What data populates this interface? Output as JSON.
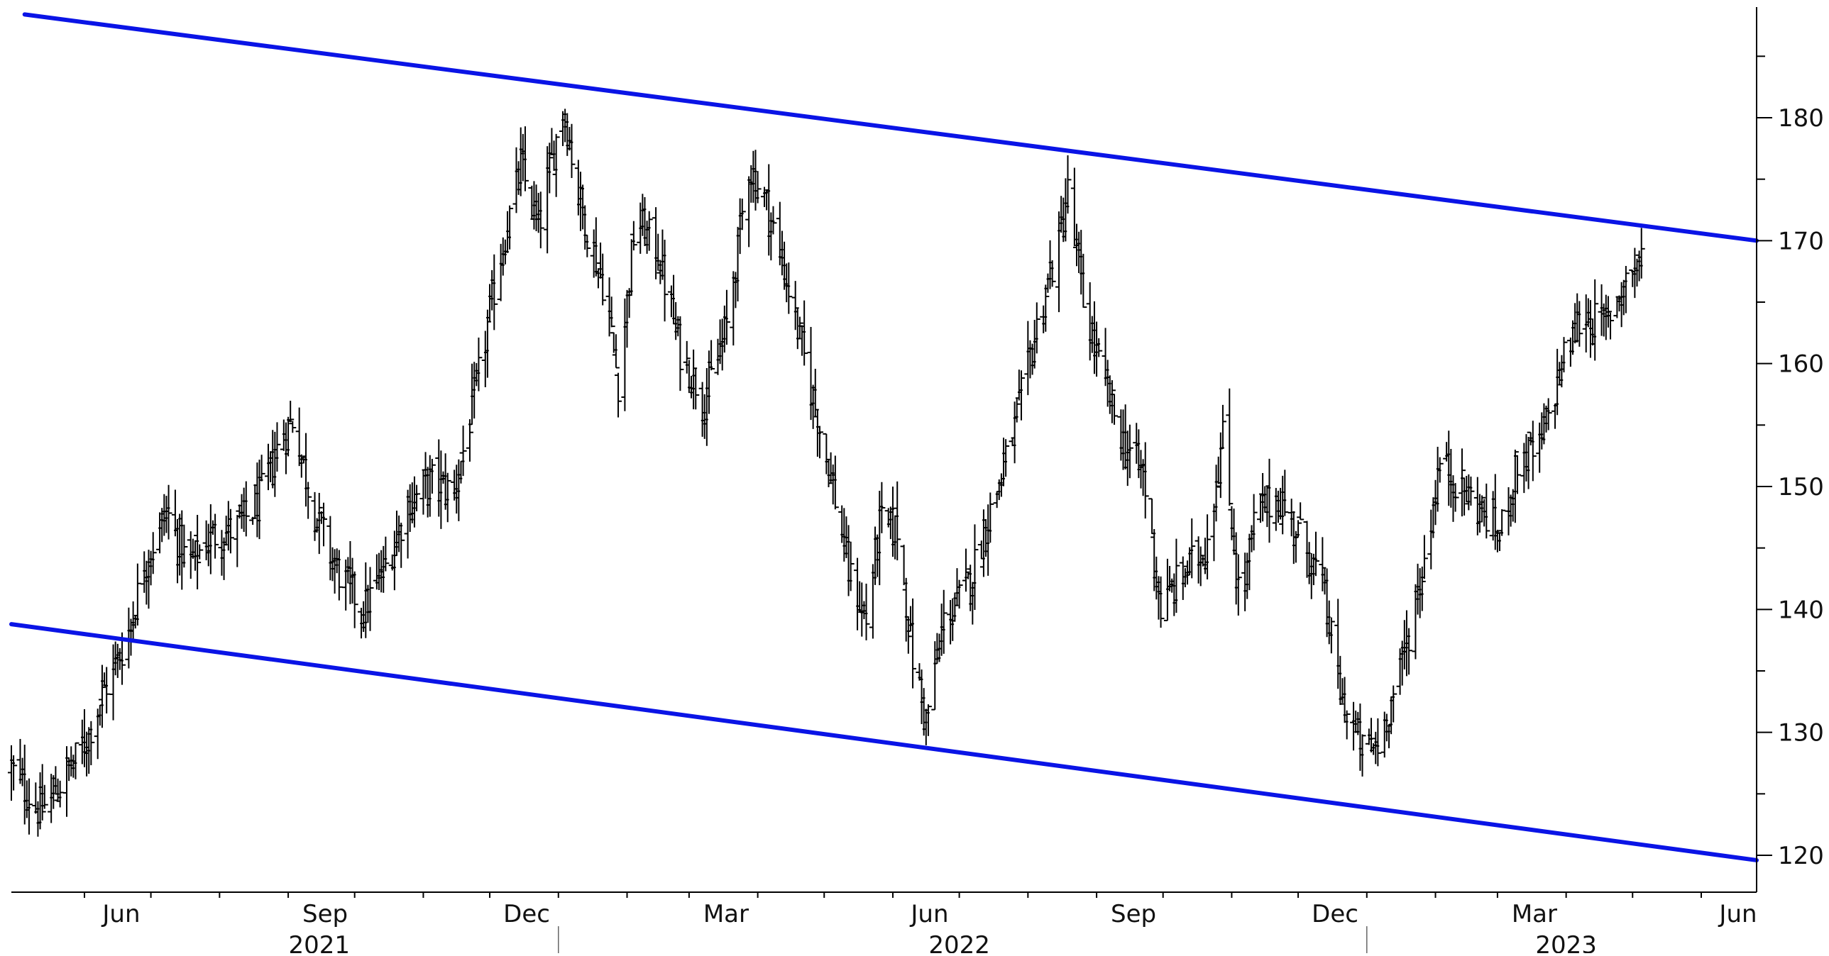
{
  "chart_data": {
    "type": "ohlc",
    "title": "",
    "xlabel": "",
    "ylabel": "",
    "ylim": [
      117,
      189
    ],
    "y_ticks": [
      120,
      130,
      140,
      150,
      160,
      170,
      180
    ],
    "y_axis_position": "right",
    "grid": false,
    "x_range": [
      "2021-04-29",
      "2023-06-26"
    ],
    "month_ticks": [
      {
        "date": "2021-06-01",
        "label": "Jun"
      },
      {
        "date": "2021-07-01",
        "label": ""
      },
      {
        "date": "2021-08-01",
        "label": ""
      },
      {
        "date": "2021-09-01",
        "label": "Sep"
      },
      {
        "date": "2021-10-01",
        "label": ""
      },
      {
        "date": "2021-11-01",
        "label": ""
      },
      {
        "date": "2021-12-01",
        "label": "Dec"
      },
      {
        "date": "2022-01-01",
        "label": ""
      },
      {
        "date": "2022-02-01",
        "label": ""
      },
      {
        "date": "2022-03-01",
        "label": "Mar"
      },
      {
        "date": "2022-04-01",
        "label": ""
      },
      {
        "date": "2022-05-01",
        "label": ""
      },
      {
        "date": "2022-06-01",
        "label": "Jun"
      },
      {
        "date": "2022-07-01",
        "label": ""
      },
      {
        "date": "2022-08-01",
        "label": ""
      },
      {
        "date": "2022-09-01",
        "label": "Sep"
      },
      {
        "date": "2022-10-01",
        "label": ""
      },
      {
        "date": "2022-11-01",
        "label": ""
      },
      {
        "date": "2022-12-01",
        "label": "Dec"
      },
      {
        "date": "2023-01-01",
        "label": ""
      },
      {
        "date": "2023-02-01",
        "label": ""
      },
      {
        "date": "2023-03-01",
        "label": "Mar"
      },
      {
        "date": "2023-04-01",
        "label": ""
      },
      {
        "date": "2023-05-01",
        "label": ""
      },
      {
        "date": "2023-06-01",
        "label": "Jun"
      }
    ],
    "year_labels": [
      {
        "label": "2021",
        "center": "2021-09-15"
      },
      {
        "label": "2022",
        "center": "2022-07-01"
      },
      {
        "label": "2023",
        "center": "2023-04-01"
      }
    ],
    "year_separators": [
      "2022-01-01",
      "2023-01-01"
    ],
    "bar_color": "#000000",
    "trendlines": [
      {
        "name": "upper channel",
        "color": "#0a14e6",
        "start": {
          "date": "2021-05-05",
          "value": 188.4
        },
        "end": {
          "date": "2023-06-26",
          "value": 170.0
        }
      },
      {
        "name": "lower channel",
        "color": "#0a14e6",
        "start": {
          "date": "2021-04-29",
          "value": 138.8
        },
        "end": {
          "date": "2023-06-26",
          "value": 119.6
        }
      }
    ],
    "price_path": [
      [
        "2021-04-29",
        127.0
      ],
      [
        "2021-05-12",
        123.5
      ],
      [
        "2021-05-20",
        125.5
      ],
      [
        "2021-06-01",
        129.0
      ],
      [
        "2021-06-10",
        133.5
      ],
      [
        "2021-06-20",
        137.5
      ],
      [
        "2021-06-28",
        143.5
      ],
      [
        "2021-07-08",
        148.0
      ],
      [
        "2021-07-18",
        143.5
      ],
      [
        "2021-07-28",
        146.0
      ],
      [
        "2021-08-08",
        146.5
      ],
      [
        "2021-08-18",
        148.5
      ],
      [
        "2021-08-28",
        153.5
      ],
      [
        "2021-09-03",
        155.5
      ],
      [
        "2021-09-12",
        148.5
      ],
      [
        "2021-09-22",
        143.5
      ],
      [
        "2021-10-05",
        140.0
      ],
      [
        "2021-10-15",
        143.5
      ],
      [
        "2021-10-25",
        148.5
      ],
      [
        "2021-11-05",
        150.5
      ],
      [
        "2021-11-15",
        149.5
      ],
      [
        "2021-11-25",
        158.0
      ],
      [
        "2021-12-05",
        168.0
      ],
      [
        "2021-12-15",
        176.0
      ],
      [
        "2021-12-23",
        171.0
      ],
      [
        "2022-01-03",
        181.0
      ],
      [
        "2022-01-12",
        172.0
      ],
      [
        "2022-01-22",
        166.0
      ],
      [
        "2022-01-28",
        158.5
      ],
      [
        "2022-02-05",
        172.0
      ],
      [
        "2022-02-15",
        169.0
      ],
      [
        "2022-02-25",
        161.0
      ],
      [
        "2022-03-08",
        157.0
      ],
      [
        "2022-03-18",
        163.0
      ],
      [
        "2022-03-28",
        176.0
      ],
      [
        "2022-04-05",
        173.0
      ],
      [
        "2022-04-15",
        166.0
      ],
      [
        "2022-04-25",
        158.0
      ],
      [
        "2022-05-05",
        150.0
      ],
      [
        "2022-05-12",
        143.0
      ],
      [
        "2022-05-20",
        139.0
      ],
      [
        "2022-05-26",
        147.0
      ],
      [
        "2022-06-03",
        146.5
      ],
      [
        "2022-06-10",
        136.0
      ],
      [
        "2022-06-16",
        131.0
      ],
      [
        "2022-06-24",
        139.0
      ],
      [
        "2022-07-05",
        142.0
      ],
      [
        "2022-07-15",
        148.0
      ],
      [
        "2022-07-25",
        154.0
      ],
      [
        "2022-08-05",
        163.0
      ],
      [
        "2022-08-15",
        170.0
      ],
      [
        "2022-08-19",
        174.0
      ],
      [
        "2022-08-26",
        165.0
      ],
      [
        "2022-09-02",
        160.0
      ],
      [
        "2022-09-12",
        154.0
      ],
      [
        "2022-09-22",
        151.0
      ],
      [
        "2022-09-30",
        140.0
      ],
      [
        "2022-10-10",
        143.0
      ],
      [
        "2022-10-20",
        145.0
      ],
      [
        "2022-10-28",
        154.0
      ],
      [
        "2022-11-05",
        140.0
      ],
      [
        "2022-11-12",
        148.0
      ],
      [
        "2022-11-22",
        149.0
      ],
      [
        "2022-12-02",
        146.0
      ],
      [
        "2022-12-12",
        142.0
      ],
      [
        "2022-12-20",
        133.0
      ],
      [
        "2022-12-30",
        128.5
      ],
      [
        "2023-01-06",
        129.0
      ],
      [
        "2023-01-16",
        135.0
      ],
      [
        "2023-01-26",
        143.0
      ],
      [
        "2023-02-03",
        152.0
      ],
      [
        "2023-02-12",
        150.0
      ],
      [
        "2023-02-22",
        148.0
      ],
      [
        "2023-03-02",
        146.0
      ],
      [
        "2023-03-10",
        152.0
      ],
      [
        "2023-03-20",
        153.0
      ],
      [
        "2023-03-30",
        160.0
      ],
      [
        "2023-04-08",
        164.0
      ],
      [
        "2023-04-18",
        163.0
      ],
      [
        "2023-04-28",
        167.0
      ],
      [
        "2023-05-05",
        168.5
      ]
    ]
  }
}
